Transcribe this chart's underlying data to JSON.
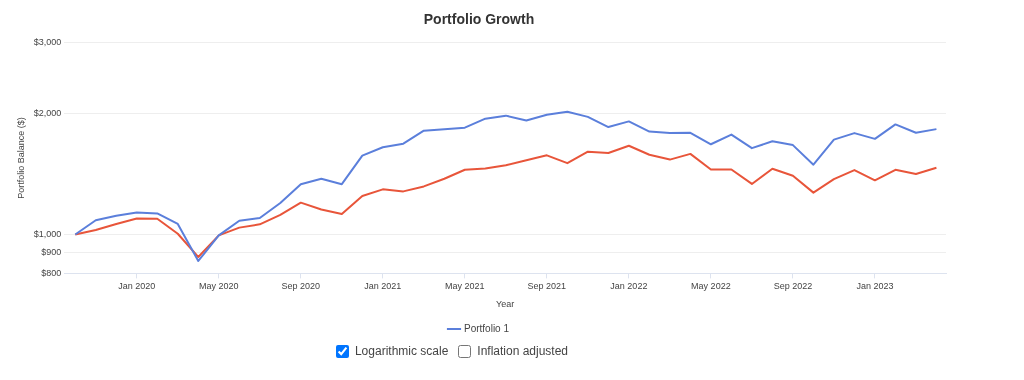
{
  "chart_data": {
    "type": "line",
    "title": "Portfolio Growth",
    "xlabel": "Year",
    "ylabel": "Portfolio Balance ($)",
    "x": [
      "2019-10",
      "2019-11",
      "2019-12",
      "2020-01",
      "2020-02",
      "2020-03",
      "2020-04",
      "2020-05",
      "2020-06",
      "2020-07",
      "2020-08",
      "2020-09",
      "2020-10",
      "2020-11",
      "2020-12",
      "2021-01",
      "2021-02",
      "2021-03",
      "2021-04",
      "2021-05",
      "2021-06",
      "2021-07",
      "2021-08",
      "2021-09",
      "2021-10",
      "2021-11",
      "2021-12",
      "2022-01",
      "2022-02",
      "2022-03",
      "2022-04",
      "2022-05",
      "2022-06",
      "2022-07",
      "2022-08",
      "2022-09",
      "2022-10",
      "2022-11",
      "2022-12",
      "2023-01",
      "2023-02",
      "2023-03",
      "2023-04"
    ],
    "series": [
      {
        "name": "Portfolio 1",
        "color": "#5b7fdb",
        "values": [
          1000,
          1085,
          1113,
          1134,
          1128,
          1062,
          859,
          995,
          1082,
          1099,
          1198,
          1334,
          1376,
          1334,
          1571,
          1649,
          1683,
          1813,
          1829,
          1844,
          1942,
          1976,
          1922,
          1986,
          2021,
          1962,
          1851,
          1912,
          1804,
          1788,
          1791,
          1677,
          1773,
          1640,
          1706,
          1669,
          1492,
          1722,
          1788,
          1730,
          1879,
          1791,
          1829
        ]
      },
      {
        "color": "#e8553a",
        "values": [
          1000,
          1026,
          1062,
          1096,
          1094,
          1004,
          879,
          995,
          1040,
          1060,
          1119,
          1200,
          1154,
          1124,
          1247,
          1295,
          1280,
          1317,
          1376,
          1449,
          1459,
          1487,
          1531,
          1574,
          1505,
          1607,
          1595,
          1663,
          1579,
          1536,
          1587,
          1451,
          1451,
          1336,
          1457,
          1400,
          1271,
          1373,
          1446,
          1364,
          1449,
          1414,
          1466
        ]
      }
    ],
    "log": true,
    "ylim": [
      800,
      3000
    ],
    "yticks": [
      {
        "value": 800,
        "label": "$800"
      },
      {
        "value": 900,
        "label": "$900"
      },
      {
        "value": 1000,
        "label": "$1,000"
      },
      {
        "value": 2000,
        "label": "$2,000"
      },
      {
        "value": 3000,
        "label": "$3,000"
      }
    ],
    "xlim": [
      "2019-09-15",
      "2023-04-15"
    ],
    "xticks": [
      {
        "value": "2020-01",
        "label": "Jan 2020"
      },
      {
        "value": "2020-05",
        "label": "May 2020"
      },
      {
        "value": "2020-09",
        "label": "Sep 2020"
      },
      {
        "value": "2021-01",
        "label": "Jan 2021"
      },
      {
        "value": "2021-05",
        "label": "May 2021"
      },
      {
        "value": "2021-09",
        "label": "Sep 2021"
      },
      {
        "value": "2022-01",
        "label": "Jan 2022"
      },
      {
        "value": "2022-05",
        "label": "May 2022"
      },
      {
        "value": "2022-09",
        "label": "Sep 2022"
      },
      {
        "value": "2023-01",
        "label": "Jan 2023"
      }
    ],
    "grid": "y",
    "legend": "bottom",
    "marker": "none",
    "line_style": "solid",
    "annotations": [
      "Logarithmic scale",
      "Inflation adjusted"
    ]
  }
}
